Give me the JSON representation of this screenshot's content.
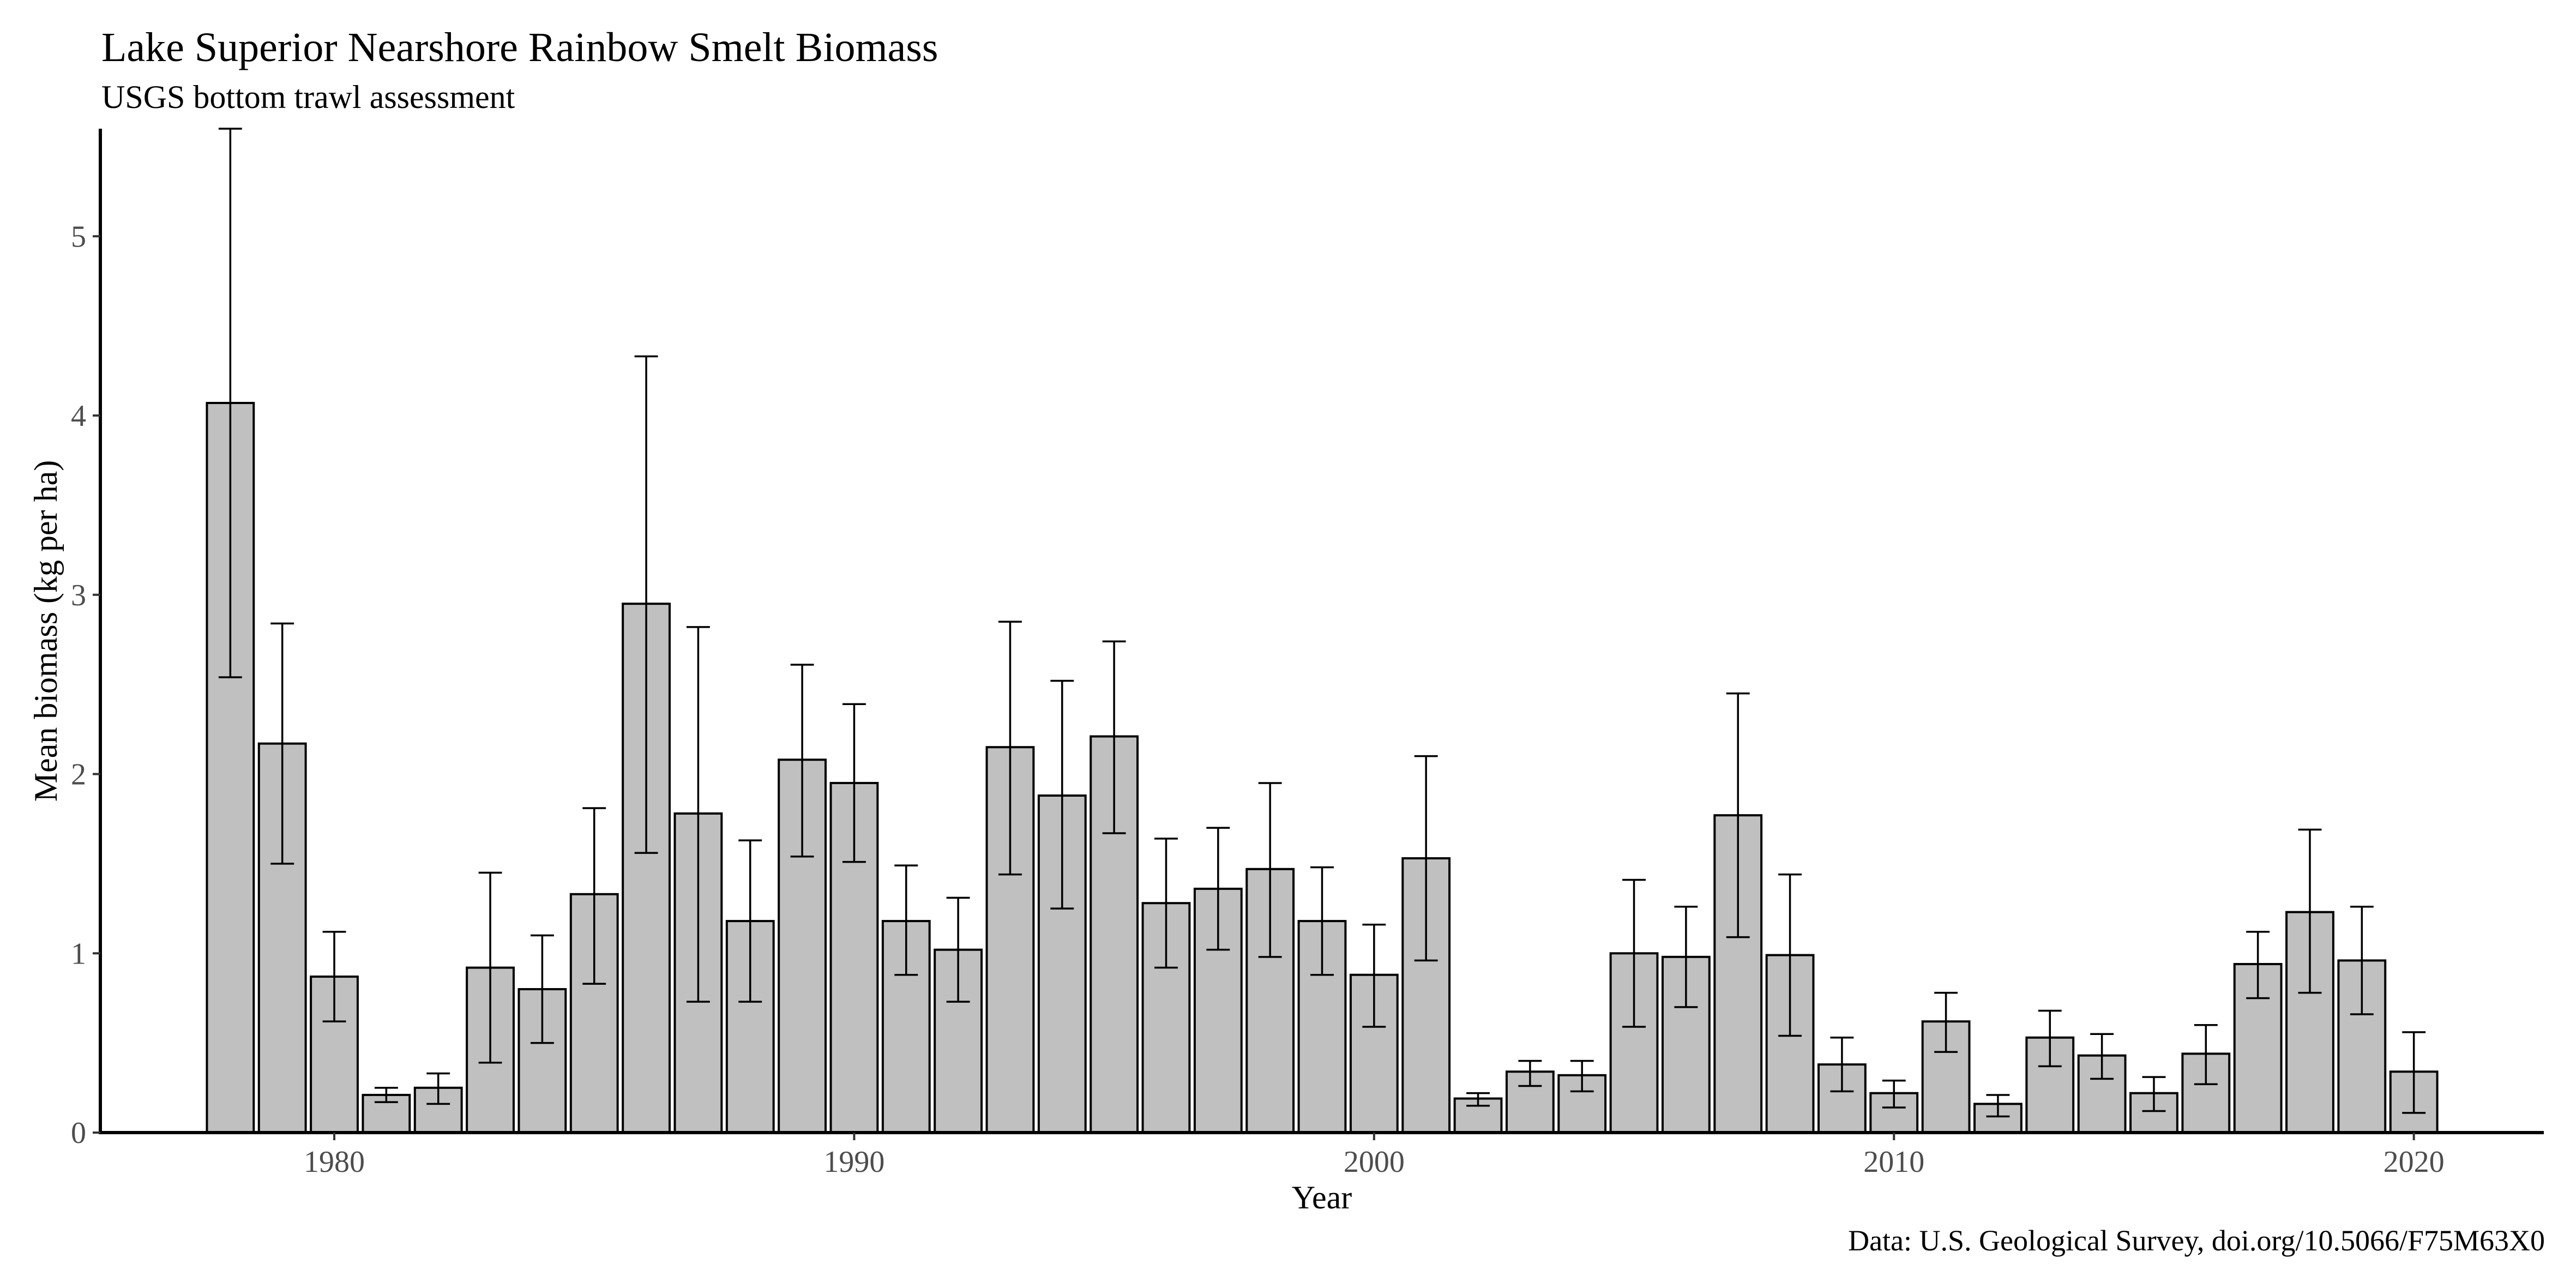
{
  "chart_data": {
    "type": "bar",
    "title": "Lake Superior Nearshore Rainbow Smelt Biomass",
    "subtitle": "USGS bottom trawl assessment",
    "xlabel": "Year",
    "ylabel": "Mean biomass (kg per ha)",
    "caption": "Data: U.S. Geological Survey, doi.org/10.5066/F75M63X0",
    "x_ticks": [
      1980,
      1990,
      2000,
      2010,
      2020
    ],
    "y_ticks": [
      0,
      1,
      2,
      3,
      4,
      5
    ],
    "xlim": [
      1975.5,
      2022.5
    ],
    "ylim": [
      0,
      5.6
    ],
    "grid": false,
    "legend": "none",
    "colors": {
      "bar_fill": "#c0c0c0",
      "bar_outline": "#000000",
      "error_bar": "#000000"
    },
    "x": [
      1978,
      1979,
      1980,
      1981,
      1982,
      1983,
      1984,
      1985,
      1986,
      1987,
      1988,
      1989,
      1990,
      1991,
      1992,
      1993,
      1994,
      1995,
      1996,
      1997,
      1998,
      1999,
      2000,
      2001,
      2002,
      2003,
      2004,
      2005,
      2006,
      2007,
      2008,
      2009,
      2010,
      2011,
      2012,
      2013,
      2014,
      2015,
      2016,
      2017,
      2018,
      2019,
      2020
    ],
    "values": [
      4.07,
      2.17,
      0.87,
      0.21,
      0.25,
      0.92,
      0.8,
      1.33,
      2.95,
      1.78,
      1.18,
      2.08,
      1.95,
      1.18,
      1.02,
      2.15,
      1.88,
      2.21,
      1.28,
      1.36,
      1.47,
      1.18,
      0.88,
      1.53,
      0.19,
      0.34,
      0.32,
      1.0,
      0.98,
      1.77,
      0.99,
      0.38,
      0.22,
      0.62,
      0.16,
      0.53,
      0.43,
      0.22,
      0.44,
      0.94,
      1.23,
      0.96,
      0.34
    ],
    "error_low": [
      2.54,
      1.5,
      0.62,
      0.17,
      0.16,
      0.39,
      0.5,
      0.83,
      1.56,
      0.73,
      0.73,
      1.54,
      1.51,
      0.88,
      0.73,
      1.44,
      1.25,
      1.67,
      0.92,
      1.02,
      0.98,
      0.88,
      0.59,
      0.96,
      0.15,
      0.26,
      0.23,
      0.59,
      0.7,
      1.09,
      0.54,
      0.23,
      0.14,
      0.45,
      0.09,
      0.37,
      0.3,
      0.12,
      0.27,
      0.75,
      0.78,
      0.66,
      0.11
    ],
    "error_high": [
      5.6,
      2.84,
      1.12,
      0.25,
      0.33,
      1.45,
      1.1,
      1.81,
      4.33,
      2.82,
      1.63,
      2.61,
      2.39,
      1.49,
      1.31,
      2.85,
      2.52,
      2.74,
      1.64,
      1.7,
      1.95,
      1.48,
      1.16,
      2.1,
      0.22,
      0.4,
      0.4,
      1.41,
      1.26,
      2.45,
      1.44,
      0.53,
      0.29,
      0.78,
      0.21,
      0.68,
      0.55,
      0.31,
      0.6,
      1.12,
      1.69,
      1.26,
      0.56
    ]
  }
}
